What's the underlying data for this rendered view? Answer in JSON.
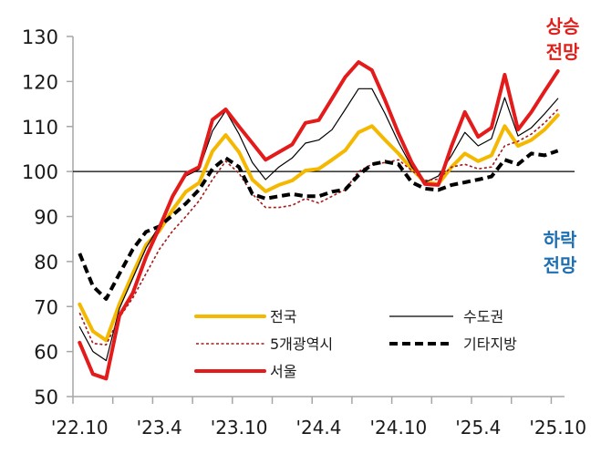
{
  "chart_data": {
    "type": "line",
    "title": "",
    "xlabel": "",
    "ylabel": "",
    "ylim": [
      50,
      130
    ],
    "yticks": [
      50,
      60,
      70,
      80,
      90,
      100,
      110,
      120,
      130
    ],
    "reference_line": 100,
    "x_tick_labels": [
      "'22.10",
      "'23.4",
      "'23.10",
      "'24.4",
      "'24.10",
      "'25.4",
      "'25.10"
    ],
    "x": [
      "'22.10",
      "'22.11",
      "'22.12",
      "'23.1",
      "'23.2",
      "'23.3",
      "'23.4",
      "'23.5",
      "'23.6",
      "'23.7",
      "'23.8",
      "'23.9",
      "'23.10",
      "'23.11",
      "'23.12",
      "'24.1",
      "'24.2",
      "'24.3",
      "'24.4",
      "'24.5",
      "'24.6",
      "'24.7",
      "'24.8",
      "'24.9",
      "'24.10",
      "'24.11",
      "'24.12",
      "'25.1",
      "'25.2",
      "'25.3",
      "'25.4",
      "'25.5",
      "'25.6",
      "'25.7",
      "'25.8",
      "'25.9",
      "'25.10"
    ],
    "series": [
      {
        "name": "전국",
        "color": "#f5b800",
        "style": "solid",
        "width": 4,
        "values": [
          70.5,
          64.5,
          62.5,
          70.6,
          77.3,
          83.7,
          86.8,
          91.5,
          95.5,
          97.5,
          104.5,
          108.1,
          104.3,
          98.2,
          95.6,
          97,
          98,
          100.2,
          100.6,
          102.6,
          104.7,
          108.7,
          110.1,
          107,
          104,
          100.6,
          97.6,
          97.2,
          101,
          104,
          102.3,
          103.6,
          110.1,
          105.7,
          107,
          109.3,
          112.5
        ]
      },
      {
        "name": "수도권",
        "color": "#000000",
        "style": "solid",
        "width": 1.2,
        "values": [
          65.5,
          60,
          58,
          69.6,
          76.3,
          83,
          88,
          95,
          99,
          100.5,
          109,
          113.5,
          108.3,
          102,
          98.2,
          101,
          103,
          106.3,
          107,
          109.3,
          113.8,
          118.4,
          118.4,
          112.8,
          106.5,
          101,
          97.6,
          99,
          103.6,
          108.7,
          105.7,
          107.3,
          116.4,
          107.9,
          109.7,
          112.8,
          116.2
        ]
      },
      {
        "name": "5개광역시",
        "color": "#a31b1b",
        "style": "dotted",
        "width": 1.6,
        "values": [
          68.6,
          61.8,
          61.5,
          67.6,
          71.9,
          77.3,
          82.7,
          86.8,
          90,
          93.5,
          98.2,
          102.3,
          99.6,
          95,
          92,
          92,
          92.5,
          94,
          93,
          94.5,
          96,
          100,
          101.6,
          102,
          102.6,
          100.2,
          98,
          98.3,
          101,
          101.6,
          100.6,
          101,
          105.7,
          106.7,
          108.3,
          110.8,
          113.8
        ]
      },
      {
        "name": "기타지방",
        "color": "#000000",
        "style": "dashed",
        "width": 4,
        "values": [
          81.8,
          74.5,
          71.7,
          77.3,
          82.7,
          86.6,
          87.8,
          90.3,
          92.9,
          96,
          100.6,
          103,
          101,
          95,
          94,
          94.5,
          95,
          94.5,
          94.5,
          95.5,
          96,
          99.2,
          101.6,
          102.2,
          101.6,
          97.6,
          96.2,
          95.9,
          97,
          97.6,
          98.2,
          98.9,
          102.6,
          101.6,
          104,
          103.6,
          104.6
        ]
      },
      {
        "name": "서울",
        "color": "#e31b1b",
        "style": "solid",
        "width": 4,
        "values": [
          62,
          55,
          54,
          68,
          73,
          81,
          87.5,
          94.5,
          99.5,
          101,
          111.5,
          113.8,
          110,
          106.3,
          102.6,
          104.3,
          106,
          110.8,
          111.4,
          116.2,
          121,
          124.3,
          122.5,
          115.8,
          108.5,
          102,
          97.2,
          97,
          105.7,
          113.2,
          107.7,
          109.7,
          121.5,
          109.3,
          113.2,
          117.8,
          122.3
        ]
      }
    ],
    "legend": {
      "position": "lower-center",
      "entries": [
        "전국",
        "수도권",
        "5개광역시",
        "기타지방",
        "서울"
      ]
    },
    "annotations": [
      {
        "text_line1": "상승",
        "text_line2": "전망",
        "color": "#e0201b",
        "position": "upper-right"
      },
      {
        "text_line1": "하락",
        "text_line2": "전망",
        "color": "#1f6fb2",
        "position": "middle-right"
      }
    ],
    "grid": false
  }
}
